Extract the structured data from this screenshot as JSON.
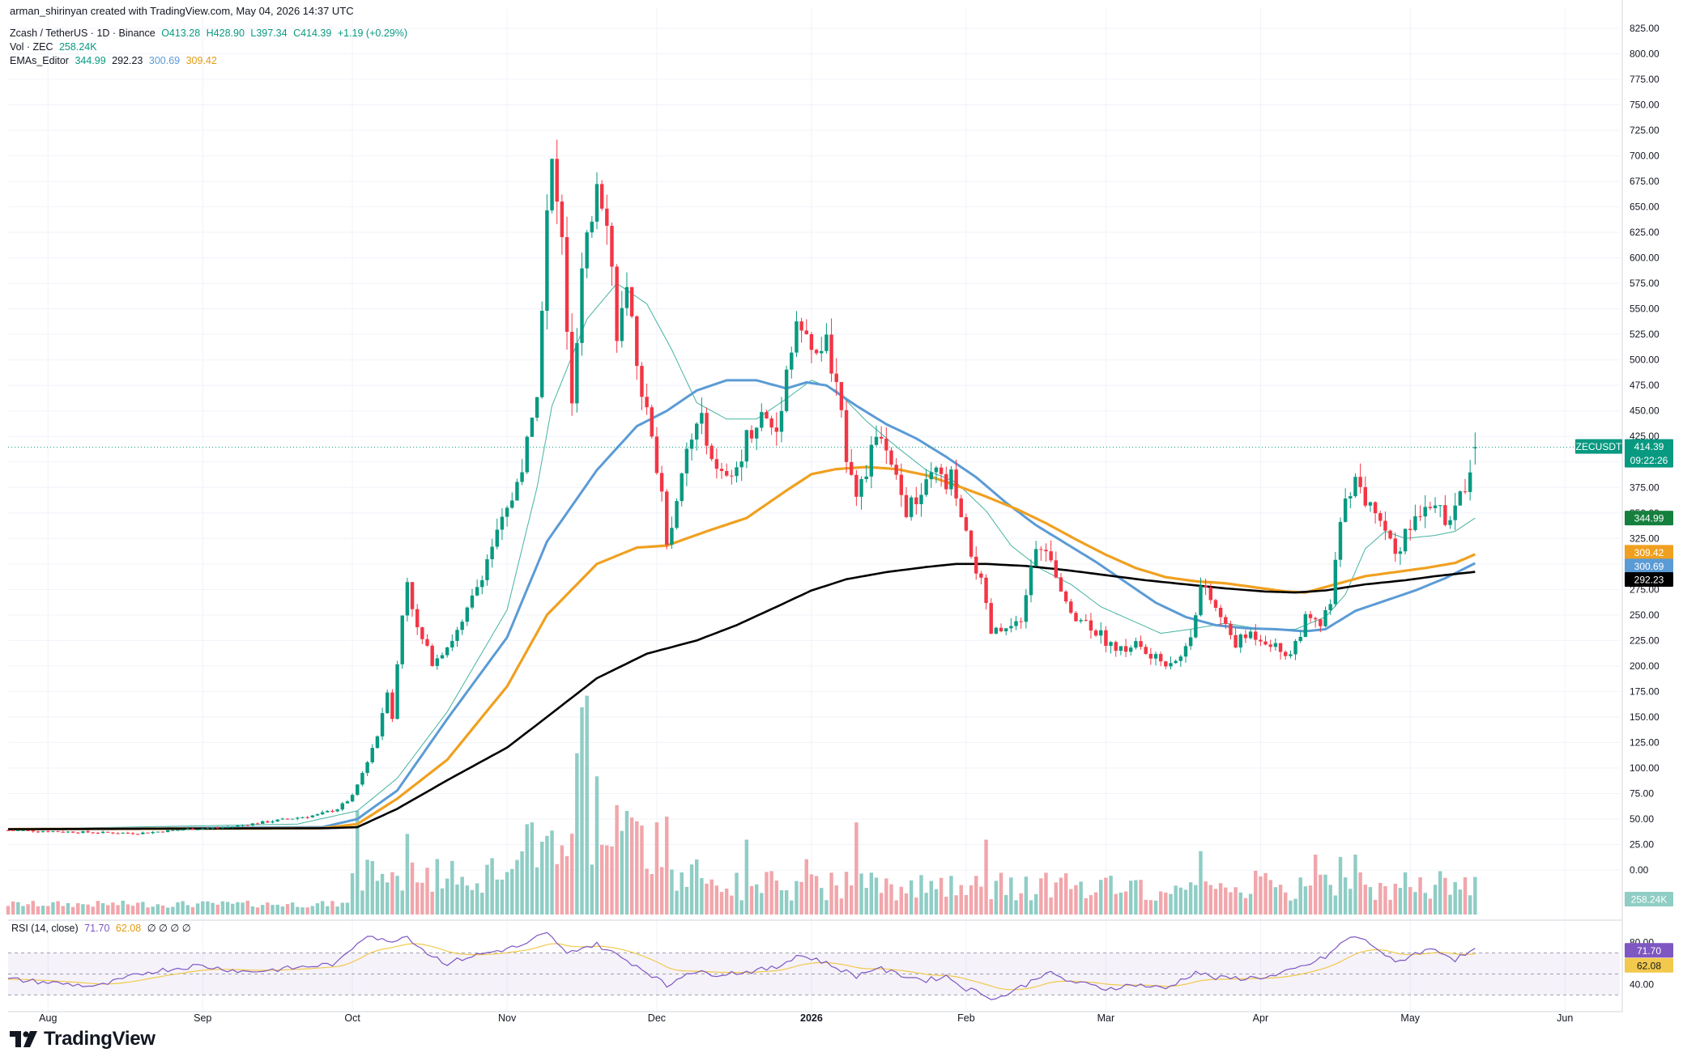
{
  "credit": "arman_shirinyan created with TradingView.com, May 04, 2026 14:37 UTC",
  "legend": {
    "symbol": "Zcash / TetherUS · 1D · Binance",
    "o": "O413.28",
    "h": "H428.90",
    "l": "L397.34",
    "c": "C414.39",
    "chg": "+1.19 (+0.29%)",
    "vol_label": "Vol · ZEC",
    "vol_value": "258.24K",
    "ema_label": "EMAs_Editor",
    "ema_v1": "344.99",
    "ema_v2": "292.23",
    "ema_v3": "300.69",
    "ema_v4": "309.42",
    "rsi_label": "RSI (14, close)",
    "rsi_v1": "71.70",
    "rsi_v2": "62.08",
    "rsi_na": "∅ ∅ ∅ ∅"
  },
  "brand": "TradingView",
  "colors": {
    "up": "#089981",
    "down": "#f23645",
    "vol_up": "#8fcdc5",
    "vol_down": "#f1a6ab",
    "ema20": "#089981",
    "ema50": "#5b9bd5",
    "ema100": "#f0a020",
    "ema200": "#000000",
    "rsi": "#7e57c2",
    "rsi_ma": "#f2c94c"
  },
  "chart_data": {
    "type": "candlestick",
    "symbol": "ZECUSDT",
    "y_axis": {
      "ticks": [
        0,
        25,
        50,
        75,
        100,
        125,
        150,
        175,
        200,
        225,
        250,
        275,
        300,
        325,
        350,
        375,
        400,
        425,
        450,
        475,
        500,
        525,
        550,
        575,
        600,
        625,
        650,
        675,
        700,
        725,
        750,
        775,
        800,
        825
      ],
      "tick_labels": [
        "0.00",
        "25.00",
        "50.00",
        "75.00",
        "100.00",
        "125.00",
        "150.00",
        "175.00",
        "200.00",
        "225.00",
        "250.00",
        "275.00",
        "300.00",
        "325.00",
        "350.00",
        "375.00",
        "400.00",
        "425.00",
        "450.00",
        "475.00",
        "500.00",
        "525.00",
        "550.00",
        "575.00",
        "600.00",
        "625.00",
        "650.00",
        "675.00",
        "700.00",
        "725.00",
        "750.00",
        "775.00",
        "800.00",
        "825.00"
      ],
      "range": [
        0,
        825
      ]
    },
    "x_axis": {
      "labels": [
        "Aug",
        "Sep",
        "Oct",
        "Nov",
        "Dec",
        "2026",
        "Feb",
        "Mar",
        "Apr",
        "May",
        "Jun"
      ],
      "label_days": [
        0,
        31,
        61,
        92,
        122,
        153,
        184,
        212,
        243,
        273,
        304
      ],
      "range_days": [
        -8,
        315
      ]
    },
    "last": {
      "symbol_tag": "ZECUSDT",
      "price": "414.39",
      "countdown": "09:22:26",
      "value": 414.39
    },
    "ema_tags": [
      {
        "label": "344.99",
        "value": 344.99,
        "series": "ema20"
      },
      {
        "label": "309.42",
        "value": 309.42,
        "series": "ema100"
      },
      {
        "label": "300.69",
        "value": 300.69,
        "series": "ema50"
      },
      {
        "label": "292.23",
        "value": 292.23,
        "series": "ema200"
      }
    ],
    "vol_tag": "258.24K",
    "anchors": [
      [
        -8,
        39
      ],
      [
        0,
        38
      ],
      [
        8,
        37
      ],
      [
        18,
        36
      ],
      [
        28,
        40
      ],
      [
        36,
        42
      ],
      [
        42,
        46
      ],
      [
        48,
        50
      ],
      [
        54,
        54
      ],
      [
        58,
        60
      ],
      [
        61,
        72
      ],
      [
        63,
        95
      ],
      [
        65,
        120
      ],
      [
        66,
        132
      ],
      [
        68,
        178
      ],
      [
        69,
        150
      ],
      [
        71,
        250
      ],
      [
        72,
        285
      ],
      [
        74,
        235
      ],
      [
        77,
        205
      ],
      [
        80,
        220
      ],
      [
        83,
        240
      ],
      [
        86,
        278
      ],
      [
        89,
        318
      ],
      [
        92,
        350
      ],
      [
        95,
        395
      ],
      [
        97,
        440
      ],
      [
        98,
        475
      ],
      [
        99,
        555
      ],
      [
        100,
        640
      ],
      [
        101,
        690
      ],
      [
        103,
        615
      ],
      [
        105,
        450
      ],
      [
        107,
        580
      ],
      [
        109,
        640
      ],
      [
        110,
        680
      ],
      [
        112,
        645
      ],
      [
        114,
        530
      ],
      [
        116,
        560
      ],
      [
        118,
        500
      ],
      [
        121,
        420
      ],
      [
        123,
        370
      ],
      [
        124,
        325
      ],
      [
        126,
        355
      ],
      [
        128,
        410
      ],
      [
        131,
        445
      ],
      [
        134,
        388
      ],
      [
        137,
        380
      ],
      [
        140,
        425
      ],
      [
        143,
        445
      ],
      [
        146,
        430
      ],
      [
        148,
        490
      ],
      [
        150,
        540
      ],
      [
        153,
        505
      ],
      [
        156,
        515
      ],
      [
        158,
        470
      ],
      [
        160,
        410
      ],
      [
        162,
        375
      ],
      [
        164,
        385
      ],
      [
        166,
        430
      ],
      [
        168,
        405
      ],
      [
        170,
        380
      ],
      [
        172,
        352
      ],
      [
        175,
        368
      ],
      [
        178,
        390
      ],
      [
        180,
        375
      ],
      [
        181,
        385
      ],
      [
        183,
        340
      ],
      [
        185,
        310
      ],
      [
        187,
        280
      ],
      [
        189,
        232
      ],
      [
        192,
        235
      ],
      [
        195,
        240
      ],
      [
        197,
        300
      ],
      [
        199,
        320
      ],
      [
        201,
        300
      ],
      [
        203,
        268
      ],
      [
        206,
        250
      ],
      [
        209,
        240
      ],
      [
        212,
        225
      ],
      [
        215,
        215
      ],
      [
        218,
        222
      ],
      [
        221,
        208
      ],
      [
        224,
        204
      ],
      [
        227,
        208
      ],
      [
        229,
        232
      ],
      [
        231,
        278
      ],
      [
        233,
        265
      ],
      [
        236,
        238
      ],
      [
        238,
        222
      ],
      [
        241,
        232
      ],
      [
        244,
        226
      ],
      [
        247,
        215
      ],
      [
        249,
        212
      ],
      [
        252,
        245
      ],
      [
        255,
        240
      ],
      [
        257,
        260
      ],
      [
        258,
        300
      ],
      [
        260,
        370
      ],
      [
        262,
        380
      ],
      [
        264,
        362
      ],
      [
        266,
        355
      ],
      [
        268,
        335
      ],
      [
        270,
        312
      ],
      [
        272,
        328
      ],
      [
        274,
        345
      ],
      [
        276,
        362
      ],
      [
        278,
        362
      ],
      [
        280,
        338
      ],
      [
        282,
        355
      ],
      [
        284,
        375
      ],
      [
        285,
        395
      ],
      [
        286,
        414
      ]
    ],
    "ema_anchors": {
      "ema20": [
        [
          -8,
          40
        ],
        [
          50,
          45
        ],
        [
          62,
          58
        ],
        [
          70,
          90
        ],
        [
          80,
          155
        ],
        [
          92,
          255
        ],
        [
          98,
          375
        ],
        [
          101,
          455
        ],
        [
          108,
          540
        ],
        [
          114,
          575
        ],
        [
          120,
          555
        ],
        [
          125,
          510
        ],
        [
          130,
          458
        ],
        [
          136,
          442
        ],
        [
          142,
          442
        ],
        [
          148,
          462
        ],
        [
          153,
          480
        ],
        [
          158,
          470
        ],
        [
          164,
          440
        ],
        [
          170,
          415
        ],
        [
          176,
          392
        ],
        [
          182,
          380
        ],
        [
          188,
          352
        ],
        [
          193,
          318
        ],
        [
          199,
          295
        ],
        [
          205,
          280
        ],
        [
          211,
          258
        ],
        [
          217,
          245
        ],
        [
          223,
          232
        ],
        [
          229,
          236
        ],
        [
          236,
          242
        ],
        [
          243,
          236
        ],
        [
          250,
          236
        ],
        [
          256,
          248
        ],
        [
          260,
          270
        ],
        [
          264,
          315
        ],
        [
          268,
          332
        ],
        [
          272,
          325
        ],
        [
          278,
          328
        ],
        [
          282,
          332
        ],
        [
          286,
          344.99
        ]
      ],
      "ema50": [
        [
          -8,
          40
        ],
        [
          55,
          42
        ],
        [
          62,
          50
        ],
        [
          70,
          78
        ],
        [
          80,
          148
        ],
        [
          92,
          228
        ],
        [
          100,
          322
        ],
        [
          110,
          392
        ],
        [
          118,
          435
        ],
        [
          124,
          450
        ],
        [
          130,
          470
        ],
        [
          136,
          480
        ],
        [
          142,
          480
        ],
        [
          148,
          472
        ],
        [
          152,
          478
        ],
        [
          156,
          475
        ],
        [
          162,
          455
        ],
        [
          168,
          437
        ],
        [
          174,
          423
        ],
        [
          180,
          405
        ],
        [
          186,
          385
        ],
        [
          192,
          360
        ],
        [
          198,
          338
        ],
        [
          204,
          320
        ],
        [
          210,
          302
        ],
        [
          216,
          282
        ],
        [
          222,
          262
        ],
        [
          228,
          248
        ],
        [
          234,
          240
        ],
        [
          240,
          237
        ],
        [
          246,
          236
        ],
        [
          252,
          234
        ],
        [
          256,
          236
        ],
        [
          262,
          254
        ],
        [
          268,
          264
        ],
        [
          274,
          274
        ],
        [
          280,
          286
        ],
        [
          286,
          300.69
        ]
      ],
      "ema100": [
        [
          -8,
          40
        ],
        [
          55,
          41
        ],
        [
          62,
          45
        ],
        [
          70,
          70
        ],
        [
          80,
          108
        ],
        [
          92,
          180
        ],
        [
          100,
          250
        ],
        [
          110,
          300
        ],
        [
          118,
          316
        ],
        [
          124,
          318
        ],
        [
          132,
          332
        ],
        [
          140,
          345
        ],
        [
          148,
          372
        ],
        [
          153,
          388
        ],
        [
          158,
          393
        ],
        [
          164,
          395
        ],
        [
          170,
          393
        ],
        [
          176,
          387
        ],
        [
          182,
          377
        ],
        [
          188,
          366
        ],
        [
          194,
          354
        ],
        [
          200,
          340
        ],
        [
          206,
          324
        ],
        [
          212,
          309
        ],
        [
          218,
          296
        ],
        [
          224,
          287
        ],
        [
          230,
          283
        ],
        [
          236,
          281
        ],
        [
          242,
          277
        ],
        [
          248,
          273
        ],
        [
          252,
          272
        ],
        [
          258,
          280
        ],
        [
          264,
          288
        ],
        [
          270,
          292
        ],
        [
          276,
          296
        ],
        [
          282,
          301
        ],
        [
          286,
          309.42
        ]
      ],
      "ema200": [
        [
          -8,
          40
        ],
        [
          56,
          41
        ],
        [
          62,
          42
        ],
        [
          70,
          60
        ],
        [
          80,
          88
        ],
        [
          92,
          120
        ],
        [
          100,
          150
        ],
        [
          110,
          188
        ],
        [
          120,
          212
        ],
        [
          130,
          225
        ],
        [
          138,
          240
        ],
        [
          146,
          258
        ],
        [
          153,
          274
        ],
        [
          160,
          285
        ],
        [
          168,
          292
        ],
        [
          176,
          297
        ],
        [
          182,
          300
        ],
        [
          188,
          300
        ],
        [
          196,
          298
        ],
        [
          204,
          294
        ],
        [
          212,
          289
        ],
        [
          220,
          284
        ],
        [
          228,
          280
        ],
        [
          236,
          276
        ],
        [
          244,
          273
        ],
        [
          250,
          272
        ],
        [
          256,
          274
        ],
        [
          264,
          280
        ],
        [
          272,
          284
        ],
        [
          278,
          288
        ],
        [
          286,
          292.23
        ]
      ]
    },
    "volume": {
      "y_range_K": [
        0,
        2600
      ],
      "spikes": [
        [
          62,
          900
        ],
        [
          72,
          700
        ],
        [
          97,
          800
        ],
        [
          103,
          600
        ],
        [
          106,
          1400
        ],
        [
          107,
          1800
        ],
        [
          108,
          1900
        ],
        [
          110,
          1200
        ],
        [
          114,
          950
        ],
        [
          116,
          900
        ],
        [
          124,
          850
        ],
        [
          140,
          650
        ],
        [
          152,
          480
        ],
        [
          162,
          800
        ],
        [
          188,
          650
        ],
        [
          231,
          550
        ],
        [
          242,
          380
        ],
        [
          254,
          520
        ],
        [
          259,
          500
        ],
        [
          262,
          520
        ]
      ]
    },
    "rsi": {
      "y_ticks": [
        40,
        80
      ],
      "y_tick_labels": [
        "40.00",
        "80.00"
      ],
      "upper_band": 70,
      "lower_band": 30,
      "range": [
        18,
        95
      ],
      "current": 71.7,
      "ma_current": 62.08,
      "anchors": [
        [
          -8,
          45
        ],
        [
          10,
          38
        ],
        [
          20,
          52
        ],
        [
          30,
          58
        ],
        [
          40,
          52
        ],
        [
          50,
          56
        ],
        [
          58,
          60
        ],
        [
          62,
          80
        ],
        [
          64,
          88
        ],
        [
          66,
          84
        ],
        [
          68,
          80
        ],
        [
          70,
          84
        ],
        [
          72,
          86
        ],
        [
          76,
          70
        ],
        [
          80,
          60
        ],
        [
          84,
          66
        ],
        [
          88,
          70
        ],
        [
          92,
          74
        ],
        [
          96,
          78
        ],
        [
          98,
          85
        ],
        [
          100,
          88
        ],
        [
          102,
          80
        ],
        [
          104,
          68
        ],
        [
          106,
          74
        ],
        [
          110,
          78
        ],
        [
          114,
          68
        ],
        [
          118,
          58
        ],
        [
          122,
          46
        ],
        [
          124,
          38
        ],
        [
          128,
          52
        ],
        [
          134,
          50
        ],
        [
          140,
          52
        ],
        [
          146,
          56
        ],
        [
          150,
          68
        ],
        [
          154,
          64
        ],
        [
          158,
          56
        ],
        [
          162,
          48
        ],
        [
          166,
          56
        ],
        [
          170,
          50
        ],
        [
          176,
          44
        ],
        [
          180,
          48
        ],
        [
          184,
          36
        ],
        [
          187,
          32
        ],
        [
          190,
          26
        ],
        [
          196,
          40
        ],
        [
          200,
          52
        ],
        [
          204,
          44
        ],
        [
          208,
          40
        ],
        [
          212,
          36
        ],
        [
          218,
          40
        ],
        [
          224,
          36
        ],
        [
          230,
          52
        ],
        [
          234,
          46
        ],
        [
          240,
          46
        ],
        [
          246,
          48
        ],
        [
          252,
          58
        ],
        [
          256,
          66
        ],
        [
          260,
          82
        ],
        [
          262,
          86
        ],
        [
          266,
          76
        ],
        [
          270,
          60
        ],
        [
          274,
          70
        ],
        [
          278,
          74
        ],
        [
          282,
          64
        ],
        [
          286,
          72
        ]
      ]
    }
  }
}
